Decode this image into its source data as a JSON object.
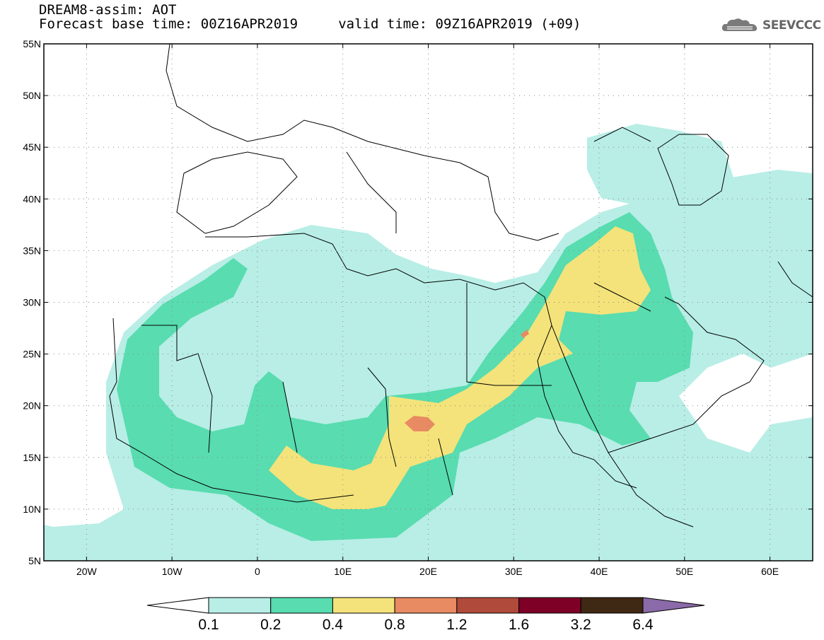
{
  "header": {
    "title_line1": "DREAM8-assim: AOT",
    "title_line2": "Forecast base time: 00Z16APR2019     valid time: 09Z16APR2019 (+09)",
    "logo_text": "SEEVCCC",
    "logo_icon": "cloud-logo-icon"
  },
  "map": {
    "lon_range": [
      -25,
      65
    ],
    "lat_range": [
      5,
      55
    ],
    "lon_ticks": [
      {
        "value": -20,
        "label": "20W"
      },
      {
        "value": -10,
        "label": "10W"
      },
      {
        "value": 0,
        "label": "0"
      },
      {
        "value": 10,
        "label": "10E"
      },
      {
        "value": 20,
        "label": "20E"
      },
      {
        "value": 30,
        "label": "30E"
      },
      {
        "value": 40,
        "label": "40E"
      },
      {
        "value": 50,
        "label": "50E"
      },
      {
        "value": 60,
        "label": "60E"
      }
    ],
    "lat_ticks": [
      {
        "value": 5,
        "label": "5N"
      },
      {
        "value": 10,
        "label": "10N"
      },
      {
        "value": 15,
        "label": "15N"
      },
      {
        "value": 20,
        "label": "20N"
      },
      {
        "value": 25,
        "label": "25N"
      },
      {
        "value": 30,
        "label": "30N"
      },
      {
        "value": 35,
        "label": "35N"
      },
      {
        "value": 40,
        "label": "40N"
      },
      {
        "value": 45,
        "label": "45N"
      },
      {
        "value": 50,
        "label": "50N"
      },
      {
        "value": 55,
        "label": "55N"
      }
    ],
    "grid": "dotted"
  },
  "colorbar": {
    "labels": [
      "0.1",
      "0.2",
      "0.4",
      "0.8",
      "1.2",
      "1.6",
      "3.2",
      "6.4"
    ],
    "colors": [
      "#ffffff",
      "#b8eee6",
      "#58dcb0",
      "#f4e37a",
      "#e88a62",
      "#b04a3a",
      "#7e0027",
      "#3f2814",
      "#8a6aa8"
    ]
  }
}
